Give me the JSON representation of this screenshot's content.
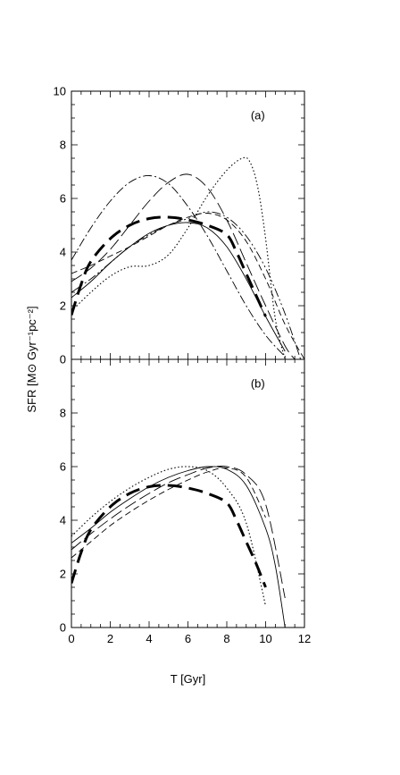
{
  "chart_data": {
    "type": "line",
    "xlabel": "T [Gyr]",
    "ylabel": "SFR [M⊙ Gyr⁻¹pc⁻²]",
    "xlim": [
      0,
      12
    ],
    "ylim": [
      0,
      10
    ],
    "x_ticks": [
      "0",
      "2",
      "4",
      "6",
      "8",
      "10",
      "12"
    ],
    "y_ticks": [
      "0",
      "2",
      "4",
      "6",
      "8",
      "10"
    ],
    "grid": false,
    "panels": [
      {
        "label": "(a)",
        "series": [
          {
            "style": "thick-dash",
            "points": [
              [
                0,
                1.65
              ],
              [
                0.5,
                2.8
              ],
              [
                1,
                3.65
              ],
              [
                2,
                4.5
              ],
              [
                3,
                5.0
              ],
              [
                4,
                5.25
              ],
              [
                5,
                5.3
              ],
              [
                6,
                5.2
              ],
              [
                7,
                5.0
              ],
              [
                8,
                4.65
              ],
              [
                8.5,
                4.0
              ],
              [
                9,
                3.2
              ],
              [
                9.5,
                2.4
              ],
              [
                10,
                1.6
              ]
            ]
          },
          {
            "style": "dot-dash",
            "points": [
              [
                0,
                3.7
              ],
              [
                1,
                4.9
              ],
              [
                2,
                5.9
              ],
              [
                3,
                6.6
              ],
              [
                4,
                6.85
              ],
              [
                5,
                6.55
              ],
              [
                6,
                5.7
              ],
              [
                7,
                4.6
              ],
              [
                8,
                3.3
              ],
              [
                9,
                2.0
              ],
              [
                10,
                0.9
              ],
              [
                11,
                0.1
              ]
            ]
          },
          {
            "style": "long-dash",
            "points": [
              [
                0,
                2.9
              ],
              [
                1,
                3.4
              ],
              [
                2,
                4.1
              ],
              [
                3,
                5.0
              ],
              [
                4,
                5.9
              ],
              [
                5,
                6.6
              ],
              [
                6,
                6.9
              ],
              [
                7,
                6.4
              ],
              [
                8,
                5.2
              ],
              [
                9,
                3.6
              ],
              [
                10,
                2.0
              ],
              [
                11,
                0.5
              ],
              [
                11.5,
                0
              ]
            ]
          },
          {
            "style": "dotted",
            "points": [
              [
                0,
                1.8
              ],
              [
                1,
                2.5
              ],
              [
                2,
                3.1
              ],
              [
                3,
                3.45
              ],
              [
                4,
                3.5
              ],
              [
                5,
                3.9
              ],
              [
                6,
                4.9
              ],
              [
                7,
                6.1
              ],
              [
                8,
                7.05
              ],
              [
                8.8,
                7.5
              ],
              [
                9.2,
                7.35
              ],
              [
                9.6,
                6.4
              ],
              [
                10,
                4.5
              ],
              [
                10.5,
                1.5
              ],
              [
                11,
                0
              ]
            ]
          },
          {
            "style": "dash-dot-dot",
            "points": [
              [
                0,
                2.5
              ],
              [
                1,
                3.0
              ],
              [
                2,
                3.6
              ],
              [
                3,
                4.2
              ],
              [
                4,
                4.65
              ],
              [
                5,
                5.0
              ],
              [
                6,
                5.25
              ],
              [
                7,
                5.5
              ],
              [
                8,
                5.3
              ],
              [
                9,
                4.6
              ],
              [
                10,
                3.4
              ],
              [
                11,
                1.7
              ],
              [
                11.8,
                0
              ]
            ]
          },
          {
            "style": "solid-thin",
            "points": [
              [
                0,
                2.3
              ],
              [
                1,
                2.9
              ],
              [
                2,
                3.6
              ],
              [
                3,
                4.2
              ],
              [
                4,
                4.7
              ],
              [
                5,
                5.0
              ],
              [
                6,
                5.1
              ],
              [
                7,
                4.9
              ],
              [
                8,
                4.2
              ],
              [
                9,
                3.0
              ],
              [
                10,
                1.6
              ],
              [
                11,
                0.3
              ]
            ]
          },
          {
            "style": "medium-dash",
            "points": [
              [
                0,
                3.2
              ],
              [
                1,
                3.5
              ],
              [
                2,
                3.85
              ],
              [
                3,
                4.2
              ],
              [
                4,
                4.6
              ],
              [
                5,
                5.0
              ],
              [
                6,
                5.3
              ],
              [
                7,
                5.45
              ],
              [
                8,
                5.2
              ],
              [
                9,
                4.4
              ],
              [
                10,
                3.0
              ],
              [
                11,
                1.3
              ],
              [
                12,
                0
              ]
            ]
          }
        ]
      },
      {
        "label": "(b)",
        "series": [
          {
            "style": "thick-dash",
            "points": [
              [
                0,
                1.65
              ],
              [
                0.5,
                2.8
              ],
              [
                1,
                3.65
              ],
              [
                2,
                4.5
              ],
              [
                3,
                5.0
              ],
              [
                4,
                5.25
              ],
              [
                5,
                5.3
              ],
              [
                6,
                5.2
              ],
              [
                7,
                5.0
              ],
              [
                8,
                4.65
              ],
              [
                8.5,
                4.0
              ],
              [
                9,
                3.2
              ],
              [
                9.5,
                2.4
              ],
              [
                10,
                1.5
              ]
            ]
          },
          {
            "style": "dotted",
            "points": [
              [
                0,
                3.4
              ],
              [
                1,
                4.1
              ],
              [
                2,
                4.7
              ],
              [
                3,
                5.2
              ],
              [
                4,
                5.6
              ],
              [
                5,
                5.9
              ],
              [
                6,
                6.0
              ],
              [
                7,
                5.85
              ],
              [
                8,
                5.2
              ],
              [
                9,
                3.9
              ],
              [
                10,
                0.8
              ]
            ]
          },
          {
            "style": "solid-thin",
            "points": [
              [
                0,
                3.15
              ],
              [
                1,
                3.7
              ],
              [
                2,
                4.3
              ],
              [
                3,
                4.8
              ],
              [
                4,
                5.25
              ],
              [
                5,
                5.6
              ],
              [
                6,
                5.85
              ],
              [
                7,
                6.0
              ],
              [
                8,
                5.9
              ],
              [
                9,
                5.3
              ],
              [
                10,
                3.7
              ],
              [
                10.5,
                2.3
              ],
              [
                11,
                0
              ]
            ]
          },
          {
            "style": "long-dash",
            "points": [
              [
                0,
                2.9
              ],
              [
                1,
                3.5
              ],
              [
                2,
                4.05
              ],
              [
                3,
                4.55
              ],
              [
                4,
                5.0
              ],
              [
                5,
                5.4
              ],
              [
                6,
                5.7
              ],
              [
                7,
                5.95
              ],
              [
                8,
                6.0
              ],
              [
                9,
                5.7
              ],
              [
                10,
                4.6
              ],
              [
                11,
                1.1
              ]
            ]
          },
          {
            "style": "medium-dash",
            "points": [
              [
                0,
                2.6
              ],
              [
                1,
                3.2
              ],
              [
                2,
                3.8
              ],
              [
                3,
                4.3
              ],
              [
                4,
                4.75
              ],
              [
                5,
                5.15
              ],
              [
                6,
                5.5
              ],
              [
                7,
                5.8
              ],
              [
                8,
                5.95
              ],
              [
                9,
                5.6
              ],
              [
                10,
                4.1
              ]
            ]
          }
        ]
      }
    ]
  }
}
